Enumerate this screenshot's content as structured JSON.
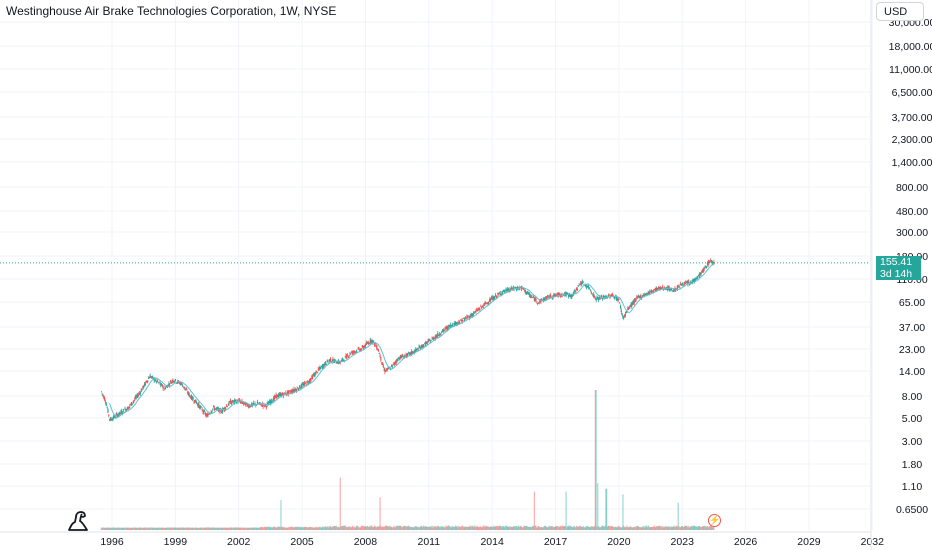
{
  "header": {
    "title": "Westinghouse Air Brake Technologies Corporation, 1W, NYSE",
    "currency": "USD"
  },
  "price_label": {
    "price": "155.41",
    "countdown": "3d 14h",
    "color": "#26a69a"
  },
  "icons": {
    "logo": "tradingview-logo-icon",
    "flash": "lightning-icon"
  },
  "colors": {
    "up": "#26a69a",
    "down": "#ef5350",
    "ma": "#5fc1d6",
    "grid": "#f0f3fa"
  },
  "chart_data": {
    "type": "candlestick",
    "scale": "log",
    "title": "Westinghouse Air Brake Technologies Corporation, 1W, NYSE",
    "y_ticks": [
      "0.6500",
      "1.10",
      "1.80",
      "3.00",
      "5.00",
      "8.00",
      "14.00",
      "23.00",
      "37.00",
      "65.00",
      "110.00",
      "180.00",
      "300.00",
      "480.00",
      "800.00",
      "1,400.00",
      "2,300.00",
      "3,700.00",
      "6,500.00",
      "11,000.00",
      "18,000.00",
      "30,000.00"
    ],
    "x_ticks": [
      "1996",
      "1999",
      "2002",
      "2005",
      "2008",
      "2011",
      "2014",
      "2017",
      "2020",
      "2023",
      "2026",
      "2029",
      "2032"
    ],
    "last_price": 155.41,
    "price_path": [
      [
        1995.5,
        8.8
      ],
      [
        1995.7,
        7.2
      ],
      [
        1995.9,
        4.8
      ],
      [
        1996.3,
        5.4
      ],
      [
        1996.8,
        6.3
      ],
      [
        1997.3,
        8.5
      ],
      [
        1997.8,
        12.5
      ],
      [
        1998.1,
        11.2
      ],
      [
        1998.5,
        9.5
      ],
      [
        1998.9,
        11.5
      ],
      [
        1999.3,
        10.5
      ],
      [
        1999.7,
        8.0
      ],
      [
        2000.0,
        7.0
      ],
      [
        2000.5,
        5.2
      ],
      [
        2000.8,
        6.2
      ],
      [
        2001.2,
        5.8
      ],
      [
        2001.6,
        7.0
      ],
      [
        2002.0,
        7.2
      ],
      [
        2002.5,
        6.5
      ],
      [
        2002.9,
        6.8
      ],
      [
        2003.3,
        6.5
      ],
      [
        2003.8,
        8.0
      ],
      [
        2004.3,
        8.5
      ],
      [
        2004.8,
        9.5
      ],
      [
        2005.3,
        11.0
      ],
      [
        2005.8,
        14.5
      ],
      [
        2006.3,
        18.0
      ],
      [
        2006.8,
        17.0
      ],
      [
        2007.3,
        21.0
      ],
      [
        2007.8,
        23.0
      ],
      [
        2008.3,
        28.0
      ],
      [
        2008.6,
        23.0
      ],
      [
        2008.9,
        14.0
      ],
      [
        2009.2,
        15.0
      ],
      [
        2009.6,
        19.0
      ],
      [
        2010.0,
        20.0
      ],
      [
        2010.5,
        23.0
      ],
      [
        2011.0,
        27.0
      ],
      [
        2011.5,
        32.0
      ],
      [
        2012.0,
        38.0
      ],
      [
        2012.5,
        42.0
      ],
      [
        2013.0,
        48.0
      ],
      [
        2013.5,
        58.0
      ],
      [
        2014.0,
        70.0
      ],
      [
        2014.5,
        82.0
      ],
      [
        2015.0,
        88.0
      ],
      [
        2015.4,
        90.0
      ],
      [
        2015.8,
        75.0
      ],
      [
        2016.2,
        65.0
      ],
      [
        2016.6,
        72.0
      ],
      [
        2017.0,
        76.0
      ],
      [
        2017.4,
        78.0
      ],
      [
        2017.8,
        75.0
      ],
      [
        2018.2,
        102.0
      ],
      [
        2018.6,
        90.0
      ],
      [
        2018.9,
        70.0
      ],
      [
        2019.3,
        72.0
      ],
      [
        2019.7,
        76.0
      ],
      [
        2020.0,
        68.0
      ],
      [
        2020.2,
        45.0
      ],
      [
        2020.5,
        58.0
      ],
      [
        2020.9,
        72.0
      ],
      [
        2021.3,
        78.0
      ],
      [
        2021.8,
        88.0
      ],
      [
        2022.2,
        90.0
      ],
      [
        2022.6,
        85.0
      ],
      [
        2023.0,
        98.0
      ],
      [
        2023.4,
        100.0
      ],
      [
        2023.8,
        118.0
      ],
      [
        2024.1,
        140.0
      ],
      [
        2024.3,
        162.0
      ],
      [
        2024.5,
        155.41
      ]
    ],
    "volume_spikes": [
      [
        2006.8,
        1.8
      ],
      [
        2018.9,
        8.0
      ],
      [
        2019.0,
        1.6
      ],
      [
        2019.4,
        1.4
      ],
      [
        2016.0,
        1.3
      ],
      [
        2020.2,
        1.2
      ],
      [
        2022.8,
        0.9
      ],
      [
        2008.7,
        1.1
      ],
      [
        2004.0,
        1.0
      ],
      [
        2017.5,
        1.3
      ]
    ]
  }
}
